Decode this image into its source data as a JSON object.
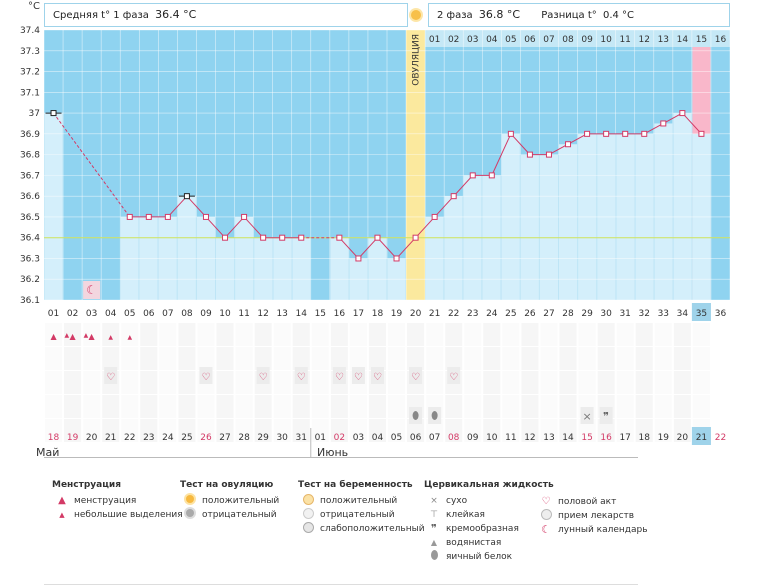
{
  "axis_unit": "°C",
  "header": {
    "phase1_label": "Средняя t° 1 фаза",
    "phase1_value": "36.4 °C",
    "phase2_label": "2 фаза",
    "phase2_value": "36.8 °C",
    "diff_label": "Разница t°",
    "diff_value": "0.4 °C"
  },
  "ovulation_label": "ОВУЛЯЦИЯ",
  "cover_line": 36.4,
  "luteal_days": [
    "01",
    "02",
    "03",
    "04",
    "05",
    "06",
    "07",
    "08",
    "09",
    "10",
    "11",
    "12",
    "13",
    "14",
    "15",
    "16"
  ],
  "cycle_days": [
    "01",
    "02",
    "03",
    "04",
    "05",
    "06",
    "07",
    "08",
    "09",
    "10",
    "11",
    "12",
    "13",
    "14",
    "15",
    "16",
    "17",
    "18",
    "19",
    "20",
    "21",
    "22",
    "23",
    "24",
    "25",
    "26",
    "27",
    "28",
    "29",
    "30",
    "31",
    "32",
    "33",
    "34",
    "35",
    "36"
  ],
  "dates": [
    "18",
    "19",
    "20",
    "21",
    "22",
    "23",
    "24",
    "25",
    "26",
    "27",
    "28",
    "29",
    "30",
    "31",
    "01",
    "02",
    "03",
    "04",
    "05",
    "06",
    "07",
    "08",
    "09",
    "10",
    "11",
    "12",
    "13",
    "14",
    "15",
    "16",
    "17",
    "18",
    "19",
    "20",
    "21",
    "22"
  ],
  "red_date_indexes": [
    0,
    1,
    8,
    15,
    21,
    28,
    29,
    35
  ],
  "months": [
    {
      "name": "Май",
      "start": 0
    },
    {
      "name": "Июнь",
      "start": 14
    }
  ],
  "icons": {
    "menstruation_days": [
      1,
      2,
      3
    ],
    "light_bleeding_days": [
      4,
      5
    ],
    "moon_day": 3,
    "intercourse_days": [
      4,
      9,
      12,
      14,
      16,
      17,
      18,
      20,
      22
    ],
    "egg_white_days": [
      20,
      21
    ],
    "dry_day": 29,
    "creamy_day": 30
  },
  "chart_data": {
    "type": "line",
    "ylabel": "°C",
    "ylim": [
      36.1,
      37.4
    ],
    "yticks": [
      36.1,
      36.2,
      36.3,
      36.4,
      36.5,
      36.6,
      36.7,
      36.8,
      36.9,
      37,
      37.1,
      37.2,
      37.3,
      37.4
    ],
    "x": [
      1,
      2,
      3,
      4,
      5,
      6,
      7,
      8,
      9,
      10,
      11,
      12,
      13,
      14,
      15,
      16,
      17,
      18,
      19,
      20,
      21,
      22,
      23,
      24,
      25,
      26,
      27,
      28,
      29,
      30,
      31,
      32,
      33,
      34,
      35,
      36
    ],
    "values": [
      37.0,
      null,
      null,
      null,
      36.5,
      36.5,
      36.5,
      36.6,
      36.5,
      36.4,
      36.5,
      36.4,
      36.4,
      36.4,
      null,
      36.4,
      36.3,
      36.4,
      36.3,
      36.4,
      36.5,
      36.6,
      36.7,
      36.7,
      36.9,
      36.8,
      36.8,
      36.85,
      36.9,
      36.9,
      36.9,
      36.9,
      36.95,
      37.0,
      36.9,
      null
    ],
    "marked_days": [
      1,
      8
    ],
    "ovulation_day": 20,
    "highlight_day": 35
  },
  "legend": {
    "menstruation": {
      "title": "Менструация",
      "items": [
        "менструация",
        "небольшие выделения"
      ]
    },
    "ovulation_test": {
      "title": "Тест на овуляцию",
      "items": [
        "положительный",
        "отрицательный"
      ]
    },
    "pregnancy_test": {
      "title": "Тест на беременность",
      "items": [
        "положительный",
        "отрицательный",
        "слабоположительный"
      ]
    },
    "cervical": {
      "title": "Цервикальная жидкость",
      "items": [
        "сухо",
        "клейкая",
        "кремообразная",
        "водянистая",
        "яичный белок"
      ]
    },
    "other": {
      "items": [
        "половой акт",
        "прием лекарств",
        "лунный календарь"
      ]
    }
  },
  "colors": {
    "phase1_bg": "#8fd3f0",
    "bar_fill": "#d4effb",
    "ovulation": "#fbe99e",
    "highlight": "#f9b7ca",
    "line": "#d33a66",
    "cover": "#cde25a"
  }
}
